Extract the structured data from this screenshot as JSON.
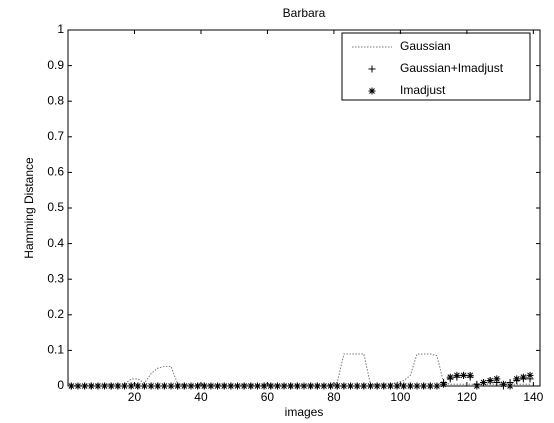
{
  "chart_data": {
    "type": "line",
    "title": "Barbara",
    "x_label": "images",
    "y_label": "Hamming Distance",
    "x": [
      1,
      3,
      5,
      7,
      9,
      11,
      13,
      15,
      17,
      19,
      21,
      23,
      25,
      27,
      29,
      31,
      33,
      35,
      37,
      39,
      41,
      43,
      45,
      47,
      49,
      51,
      53,
      55,
      57,
      59,
      61,
      63,
      65,
      67,
      69,
      71,
      73,
      75,
      77,
      79,
      81,
      83,
      85,
      87,
      89,
      91,
      93,
      95,
      97,
      99,
      101,
      103,
      105,
      107,
      109,
      111,
      113,
      115,
      117,
      119,
      121,
      123,
      125,
      127,
      129,
      131,
      133,
      135,
      137,
      139
    ],
    "series": [
      {
        "name": "Gaussian",
        "color": "#777777",
        "style": "dotted",
        "values": [
          0.002,
          0.002,
          0.003,
          0.002,
          0.005,
          0.005,
          0.003,
          0.005,
          0.005,
          0.02,
          0.02,
          0.008,
          0.035,
          0.05,
          0.055,
          0.055,
          0.005,
          0.003,
          0.003,
          0.003,
          0.003,
          0.003,
          0.003,
          0.003,
          0.003,
          0.003,
          0.003,
          0.003,
          0.003,
          0.003,
          0.003,
          0.003,
          0.003,
          0.003,
          0.003,
          0.003,
          0.003,
          0.003,
          0.003,
          0.003,
          0.01,
          0.09,
          0.09,
          0.09,
          0.09,
          0.005,
          0.003,
          0.005,
          0.005,
          0.01,
          0.015,
          0.03,
          0.09,
          0.09,
          0.09,
          0.085,
          0.01,
          0.005,
          0.005,
          0.005,
          0.005,
          0.005,
          0.005,
          0.005,
          0.005,
          0.005,
          0.005,
          0.005,
          0.005,
          0.005
        ]
      },
      {
        "name": "Gaussian+Imadjust",
        "color": "#000000",
        "style": "plus",
        "values": [
          0,
          0,
          0,
          0,
          0,
          0,
          0,
          0,
          0,
          0,
          0,
          0,
          0,
          0,
          0,
          0,
          0,
          0,
          0,
          0,
          0,
          0,
          0,
          0,
          0,
          0,
          0,
          0,
          0,
          0,
          0,
          0,
          0,
          0,
          0,
          0,
          0,
          0,
          0,
          0,
          0,
          0,
          0,
          0,
          0,
          0,
          0,
          0,
          0,
          0,
          0,
          0,
          0,
          0,
          0,
          0,
          0.01,
          0.02,
          0.025,
          0.03,
          0.025,
          0.005,
          0.01,
          0.015,
          0.01,
          0,
          0.01,
          0.015,
          0.02,
          0.02
        ]
      },
      {
        "name": "Imadjust",
        "color": "#000000",
        "style": "star",
        "values": [
          0,
          0,
          0,
          0,
          0,
          0,
          0,
          0,
          0,
          0,
          0,
          0,
          0,
          0,
          0,
          0,
          0,
          0,
          0,
          0,
          0,
          0,
          0,
          0,
          0,
          0,
          0,
          0,
          0,
          0,
          0,
          0,
          0,
          0,
          0,
          0,
          0,
          0,
          0,
          0,
          0,
          0,
          0,
          0,
          0,
          0,
          0,
          0,
          0,
          0,
          0,
          0,
          0,
          0,
          0,
          0,
          0.005,
          0.025,
          0.03,
          0.03,
          0.03,
          0,
          0.01,
          0.015,
          0.02,
          0.005,
          0,
          0.02,
          0.025,
          0.03
        ]
      }
    ],
    "xlim": [
      0,
      142
    ],
    "xticks": [
      20,
      40,
      60,
      80,
      100,
      120,
      140
    ],
    "ylim": [
      0,
      1
    ],
    "yticks": [
      0,
      0.1,
      0.2,
      0.3,
      0.4,
      0.5,
      0.6,
      0.7,
      0.8,
      0.9,
      1
    ],
    "legend": "top-right"
  }
}
